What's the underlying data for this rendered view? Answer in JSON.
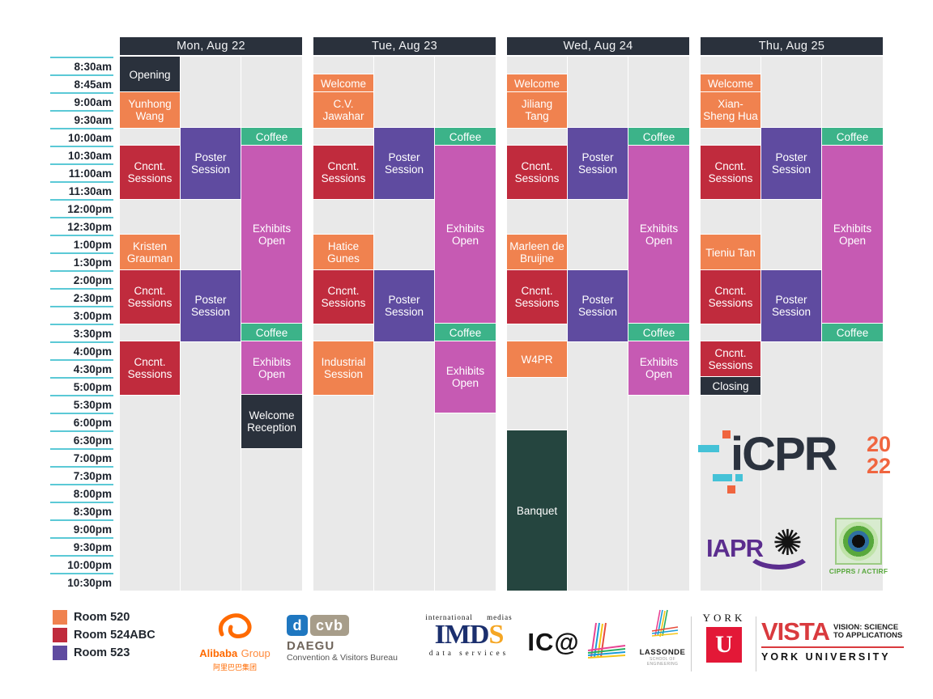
{
  "colors": {
    "orange": "#F0824F",
    "red": "#C02B3D",
    "purple": "#5F4BA0",
    "pink": "#C65AB3",
    "green": "#3CB389",
    "dark": "#2A313C",
    "banquet": "#25453F"
  },
  "schedule": {
    "times": [
      "8:30am",
      "8:45am",
      "9:00am",
      "9:30am",
      "10:00am",
      "10:30am",
      "11:00am",
      "11:30am",
      "12:00pm",
      "12:30pm",
      "1:00pm",
      "1:30pm",
      "2:00pm",
      "2:30pm",
      "3:00pm",
      "3:30pm",
      "4:00pm",
      "4:30pm",
      "5:00pm",
      "5:30pm",
      "6:00pm",
      "6:30pm",
      "7:00pm",
      "7:30pm",
      "8:00pm",
      "8:30pm",
      "9:00pm",
      "9:30pm",
      "10:00pm",
      "10:30pm"
    ],
    "days": [
      {
        "label": "Mon, Aug 22",
        "events": [
          {
            "title": "Opening",
            "col": 0,
            "row": 1,
            "span": 2,
            "color": "dark"
          },
          {
            "title": "Yunhong Wang",
            "col": 0,
            "row": 3,
            "span": 2,
            "color": "orange"
          },
          {
            "title": "Coffee",
            "col": 2,
            "row": 5,
            "span": 1,
            "color": "green"
          },
          {
            "title": "Poster Session",
            "col": 1,
            "row": 5,
            "span": 4,
            "color": "purple"
          },
          {
            "title": "Cncnt. Sessions",
            "col": 0,
            "row": 6,
            "span": 3,
            "color": "red"
          },
          {
            "title": "Exhibits Open",
            "col": 2,
            "row": 6,
            "span": 10,
            "color": "pink"
          },
          {
            "title": "Kristen Grauman",
            "col": 0,
            "row": 11,
            "span": 2,
            "color": "orange"
          },
          {
            "title": "Cncnt. Sessions",
            "col": 0,
            "row": 13,
            "span": 3,
            "color": "red"
          },
          {
            "title": "Poster Session",
            "col": 1,
            "row": 13,
            "span": 4,
            "color": "purple"
          },
          {
            "title": "Coffee",
            "col": 2,
            "row": 16,
            "span": 1,
            "color": "green"
          },
          {
            "title": "Cncnt. Sessions",
            "col": 0,
            "row": 17,
            "span": 3,
            "color": "red"
          },
          {
            "title": "Exhibits Open",
            "col": 2,
            "row": 17,
            "span": 3,
            "color": "pink"
          },
          {
            "title": "Welcome Reception",
            "col": 2,
            "row": 20,
            "span": 3,
            "color": "dark"
          }
        ]
      },
      {
        "label": "Tue, Aug 23",
        "events": [
          {
            "title": "Welcome",
            "col": 0,
            "row": 2,
            "span": 1,
            "color": "orange"
          },
          {
            "title": "C.V. Jawahar",
            "col": 0,
            "row": 3,
            "span": 2,
            "color": "orange"
          },
          {
            "title": "Coffee",
            "col": 2,
            "row": 5,
            "span": 1,
            "color": "green"
          },
          {
            "title": "Poster Session",
            "col": 1,
            "row": 5,
            "span": 4,
            "color": "purple"
          },
          {
            "title": "Cncnt. Sessions",
            "col": 0,
            "row": 6,
            "span": 3,
            "color": "red"
          },
          {
            "title": "Exhibits Open",
            "col": 2,
            "row": 6,
            "span": 10,
            "color": "pink"
          },
          {
            "title": "Hatice Gunes",
            "col": 0,
            "row": 11,
            "span": 2,
            "color": "orange"
          },
          {
            "title": "Cncnt. Sessions",
            "col": 0,
            "row": 13,
            "span": 3,
            "color": "red"
          },
          {
            "title": "Poster Session",
            "col": 1,
            "row": 13,
            "span": 4,
            "color": "purple"
          },
          {
            "title": "Coffee",
            "col": 2,
            "row": 16,
            "span": 1,
            "color": "green"
          },
          {
            "title": "Industrial Session",
            "col": 0,
            "row": 17,
            "span": 3,
            "color": "orange"
          },
          {
            "title": "Exhibits Open",
            "col": 2,
            "row": 17,
            "span": 4,
            "color": "pink"
          }
        ]
      },
      {
        "label": "Wed, Aug 24",
        "events": [
          {
            "title": "Welcome",
            "col": 0,
            "row": 2,
            "span": 1,
            "color": "orange"
          },
          {
            "title": "Jiliang Tang",
            "col": 0,
            "row": 3,
            "span": 2,
            "color": "orange"
          },
          {
            "title": "Coffee",
            "col": 2,
            "row": 5,
            "span": 1,
            "color": "green"
          },
          {
            "title": "Poster Session",
            "col": 1,
            "row": 5,
            "span": 4,
            "color": "purple"
          },
          {
            "title": "Cncnt. Sessions",
            "col": 0,
            "row": 6,
            "span": 3,
            "color": "red"
          },
          {
            "title": "Exhibits Open",
            "col": 2,
            "row": 6,
            "span": 10,
            "color": "pink"
          },
          {
            "title": "Marleen de Bruijne",
            "col": 0,
            "row": 11,
            "span": 2,
            "color": "orange"
          },
          {
            "title": "Cncnt. Sessions",
            "col": 0,
            "row": 13,
            "span": 3,
            "color": "red"
          },
          {
            "title": "Poster Session",
            "col": 1,
            "row": 13,
            "span": 4,
            "color": "purple"
          },
          {
            "title": "Coffee",
            "col": 2,
            "row": 16,
            "span": 1,
            "color": "green"
          },
          {
            "title": "W4PR",
            "col": 0,
            "row": 17,
            "span": 2,
            "color": "orange"
          },
          {
            "title": "Exhibits Open",
            "col": 2,
            "row": 17,
            "span": 3,
            "color": "pink"
          },
          {
            "title": "Banquet",
            "col": 0,
            "row": 22,
            "span": 9,
            "color": "banquet"
          }
        ]
      },
      {
        "label": "Thu, Aug 25",
        "events": [
          {
            "title": "Welcome",
            "col": 0,
            "row": 2,
            "span": 1,
            "color": "orange"
          },
          {
            "title": "Xian-Sheng Hua",
            "col": 0,
            "row": 3,
            "span": 2,
            "color": "orange"
          },
          {
            "title": "Coffee",
            "col": 2,
            "row": 5,
            "span": 1,
            "color": "green"
          },
          {
            "title": "Poster Session",
            "col": 1,
            "row": 5,
            "span": 4,
            "color": "purple"
          },
          {
            "title": "Cncnt. Sessions",
            "col": 0,
            "row": 6,
            "span": 3,
            "color": "red"
          },
          {
            "title": "Exhibits Open",
            "col": 2,
            "row": 6,
            "span": 10,
            "color": "pink"
          },
          {
            "title": "Tieniu Tan",
            "col": 0,
            "row": 11,
            "span": 2,
            "color": "orange"
          },
          {
            "title": "Cncnt. Sessions",
            "col": 0,
            "row": 13,
            "span": 3,
            "color": "red"
          },
          {
            "title": "Poster Session",
            "col": 1,
            "row": 13,
            "span": 4,
            "color": "purple"
          },
          {
            "title": "Coffee",
            "col": 2,
            "row": 16,
            "span": 1,
            "color": "green"
          },
          {
            "title": "Cncnt. Sessions",
            "col": 0,
            "row": 17,
            "span": 2,
            "color": "red"
          },
          {
            "title": "Closing",
            "col": 0,
            "row": 19,
            "span": 1,
            "color": "dark"
          }
        ]
      }
    ]
  },
  "legend": {
    "items": [
      {
        "label": "Room 520",
        "color": "orange"
      },
      {
        "label": "Room 524ABC",
        "color": "red"
      },
      {
        "label": "Room 523",
        "color": "purple"
      }
    ]
  },
  "branding": {
    "icpr": {
      "wordmark": "iCPR",
      "year_top": "20",
      "year_bottom": "22"
    },
    "iapr": {
      "wordmark": "IAPR"
    },
    "cipprs": {
      "label": "CIPPRS / ACTIRF"
    }
  },
  "sponsors": {
    "alibaba": {
      "name": "Alibaba",
      "suffix": "Group",
      "cjk": "阿里巴巴集团"
    },
    "dcvb": {
      "d": "d",
      "cvb": "cvb",
      "name": "DAEGU",
      "subtitle": "Convention & Visitors Bureau"
    },
    "imds": {
      "top": "international medias",
      "imd": "IMD",
      "s": "S",
      "bottom": "data services"
    },
    "ical": {
      "wordmark": "IC@"
    },
    "lassonde": {
      "name": "LASSONDE",
      "subtitle": "SCHOOL OF ENGINEERING"
    },
    "yorku": {
      "name": "YORK",
      "u": "U"
    },
    "vista": {
      "name": "VISTA",
      "tagline1": "VISION: SCIENCE",
      "tagline2": "TO APPLICATIONS",
      "footer": "YORK UNIVERSITY"
    }
  }
}
